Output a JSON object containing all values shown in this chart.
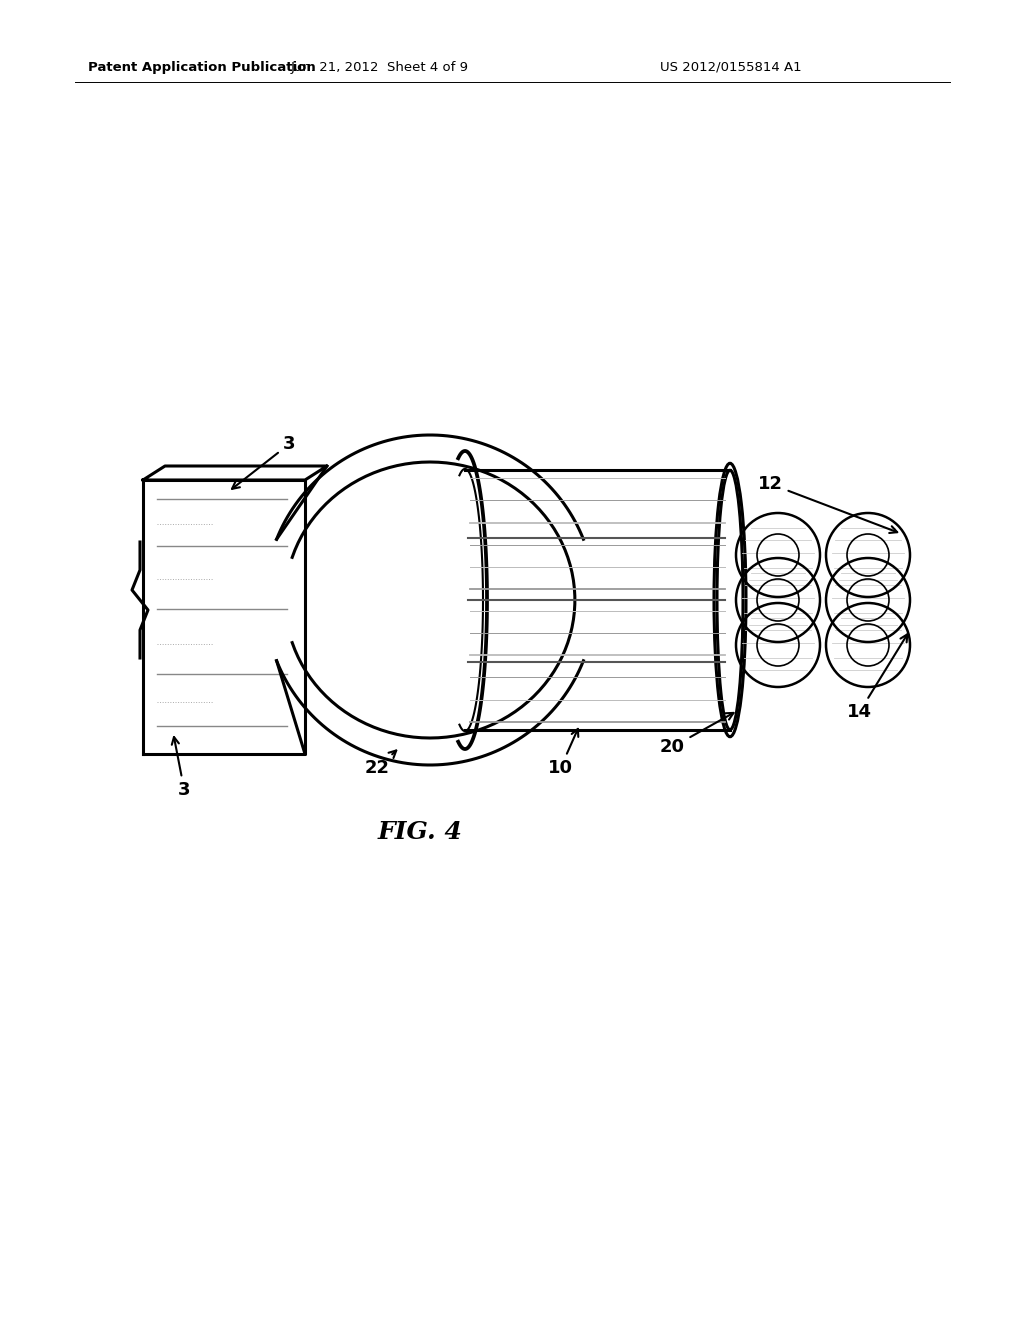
{
  "title": "FIG. 4",
  "header_left": "Patent Application Publication",
  "header_center": "Jun. 21, 2012  Sheet 4 of 9",
  "header_right": "US 2012/0155814 A1",
  "bg_color": "#ffffff",
  "line_color": "#000000",
  "labels": {
    "3_top": "3",
    "3_bot": "3",
    "10": "10",
    "12": "12",
    "14": "14",
    "20": "20",
    "22": "22"
  }
}
